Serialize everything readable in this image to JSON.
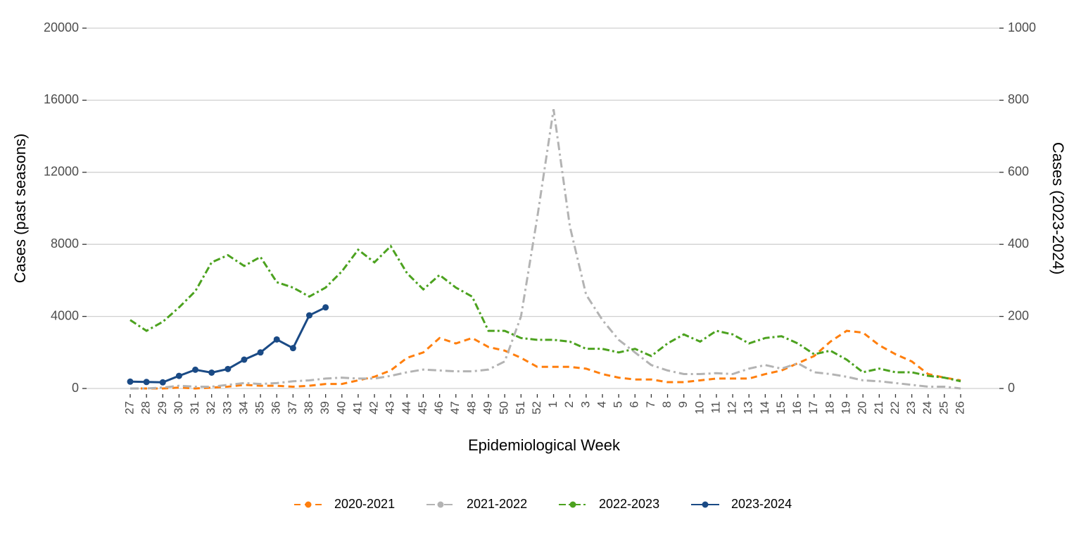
{
  "chart_data": {
    "type": "line",
    "xlabel": "Epidemiological Week",
    "ylabel": "Cases (past seasons)",
    "y2label": "Cases (2023-2024)",
    "categories": [
      "27",
      "28",
      "29",
      "30",
      "31",
      "32",
      "33",
      "34",
      "35",
      "36",
      "37",
      "38",
      "39",
      "40",
      "41",
      "42",
      "43",
      "44",
      "45",
      "46",
      "47",
      "48",
      "49",
      "50",
      "51",
      "52",
      "1",
      "2",
      "3",
      "4",
      "5",
      "6",
      "7",
      "8",
      "9",
      "10",
      "11",
      "12",
      "13",
      "14",
      "15",
      "16",
      "17",
      "18",
      "19",
      "20",
      "21",
      "22",
      "23",
      "24",
      "25",
      "26"
    ],
    "ylim": [
      0,
      20000
    ],
    "yticks": [
      0,
      4000,
      8000,
      12000,
      16000,
      20000
    ],
    "y2lim": [
      0,
      1000
    ],
    "y2ticks": [
      0,
      200,
      400,
      600,
      800,
      1000
    ],
    "grid": true,
    "legend": "bottom",
    "series": [
      {
        "name": "2020-2021",
        "color": "#ff7f0e",
        "dash": "9,6",
        "values": [
          0,
          0,
          0,
          50,
          0,
          50,
          100,
          200,
          150,
          150,
          100,
          150,
          250,
          250,
          450,
          650,
          1000,
          1700,
          2000,
          2800,
          2500,
          2800,
          2300,
          2100,
          1700,
          1200,
          1200,
          1200,
          1100,
          800,
          600,
          500,
          500,
          350,
          350,
          450,
          550,
          550,
          550,
          800,
          1000,
          1400,
          1800,
          2600,
          3200,
          3100,
          2400,
          1900,
          1500,
          800,
          600,
          450
        ]
      },
      {
        "name": "2021-2022",
        "color": "#b3b3b3",
        "dash": "12,5,3,5",
        "values": [
          0,
          0,
          50,
          150,
          100,
          100,
          200,
          300,
          250,
          300,
          400,
          450,
          550,
          600,
          550,
          550,
          700,
          900,
          1050,
          1000,
          950,
          950,
          1050,
          1500,
          4000,
          9500,
          15500,
          9000,
          5200,
          3800,
          2700,
          2000,
          1300,
          1000,
          800,
          800,
          850,
          800,
          1100,
          1300,
          1100,
          1400,
          900,
          800,
          650,
          450,
          400,
          300,
          200,
          100,
          100,
          0
        ]
      },
      {
        "name": "2022-2023",
        "color": "#4ca21f",
        "dash": "10,4,3,4",
        "values": [
          3800,
          3200,
          3700,
          4500,
          5400,
          7000,
          7400,
          6800,
          7300,
          5900,
          5600,
          5100,
          5600,
          6500,
          7700,
          7000,
          7900,
          6400,
          5500,
          6300,
          5600,
          5100,
          3200,
          3200,
          2800,
          2700,
          2700,
          2600,
          2200,
          2200,
          2000,
          2200,
          1800,
          2500,
          3000,
          2600,
          3200,
          3000,
          2500,
          2800,
          2900,
          2500,
          1900,
          2100,
          1600,
          900,
          1100,
          900,
          900,
          700,
          600,
          400
        ]
      },
      {
        "name": "2023-2024",
        "color": "#1a4a85",
        "axis": "y2",
        "markers": true,
        "values": [
          19,
          18,
          17,
          35,
          52,
          44,
          54,
          80,
          100,
          136,
          112,
          203,
          225,
          null,
          null,
          null,
          null,
          null,
          null,
          null,
          null,
          null,
          null,
          null,
          null,
          null,
          null,
          null,
          null,
          null,
          null,
          null,
          null,
          null,
          null,
          null,
          null,
          null,
          null,
          null,
          null,
          null,
          null,
          null,
          null,
          null,
          null,
          null,
          null,
          null,
          null,
          null
        ]
      }
    ]
  }
}
